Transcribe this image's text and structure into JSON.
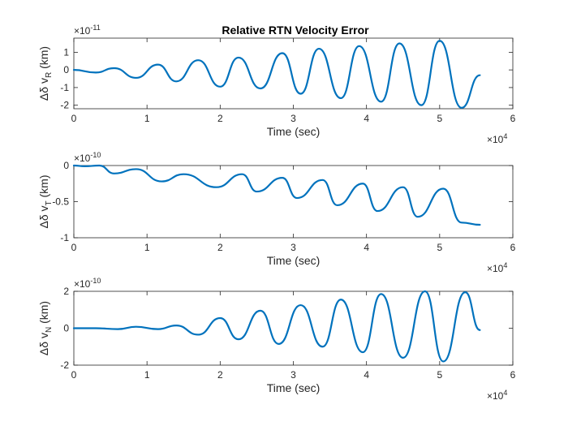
{
  "chart_data": {
    "title": "Relative RTN Velocity Error",
    "colors": {
      "line": "#0072BD",
      "axes": "#262626",
      "background": "#ffffff"
    },
    "panels": [
      {
        "type": "line",
        "ylabel_prefix": "Δδ v",
        "ylabel_sub": "R",
        "ylabel_unit": " (km)",
        "xlabel": "Time (sec)",
        "xlim": [
          0,
          6
        ],
        "x_ticks": [
          "0",
          "1",
          "2",
          "3",
          "4",
          "5",
          "6"
        ],
        "x_exponent_base": "×10",
        "x_exponent_power": "4",
        "ylim": [
          -2.2,
          1.8
        ],
        "y_ticks": [
          -2,
          -1,
          0,
          1
        ],
        "y_tick_labels": [
          "-2",
          "-1",
          "0",
          "1"
        ],
        "y_exponent_base": "×10",
        "y_exponent_power": "-11",
        "series": [
          {
            "x": [
              0,
              0.3,
              0.55,
              0.85,
              1.15,
              1.4,
              1.7,
              2.0,
              2.25,
              2.55,
              2.85,
              3.1,
              3.35,
              3.65,
              3.9,
              4.2,
              4.45,
              4.75,
              5.0,
              5.3,
              5.55
            ],
            "y": [
              0,
              -0.15,
              0.1,
              -0.45,
              0.3,
              -0.65,
              0.55,
              -0.95,
              0.7,
              -1.05,
              0.95,
              -1.35,
              1.2,
              -1.6,
              1.35,
              -1.8,
              1.5,
              -2.0,
              1.65,
              -2.15,
              -0.3
            ]
          }
        ]
      },
      {
        "type": "line",
        "ylabel_prefix": "Δδ v",
        "ylabel_sub": "T",
        "ylabel_unit": " (km)",
        "xlabel": "Time (sec)",
        "xlim": [
          0,
          6
        ],
        "x_ticks": [
          "0",
          "1",
          "2",
          "3",
          "4",
          "5",
          "6"
        ],
        "x_exponent_base": "×10",
        "x_exponent_power": "4",
        "ylim": [
          -1,
          0
        ],
        "y_ticks": [
          -1,
          -0.5,
          0
        ],
        "y_tick_labels": [
          "-1",
          "-0.5",
          "0"
        ],
        "y_exponent_base": "×10",
        "y_exponent_power": "-10",
        "series": [
          {
            "x": [
              0,
              0.15,
              0.35,
              0.55,
              0.85,
              1.2,
              1.5,
              1.95,
              2.3,
              2.5,
              2.85,
              3.05,
              3.4,
              3.6,
              3.95,
              4.15,
              4.5,
              4.7,
              5.05,
              5.3,
              5.55
            ],
            "y": [
              0,
              -0.01,
              0.0,
              -0.11,
              -0.05,
              -0.22,
              -0.12,
              -0.3,
              -0.12,
              -0.36,
              -0.17,
              -0.45,
              -0.2,
              -0.55,
              -0.25,
              -0.63,
              -0.3,
              -0.71,
              -0.32,
              -0.79,
              -0.82
            ]
          }
        ]
      },
      {
        "type": "line",
        "ylabel_prefix": "Δδ v",
        "ylabel_sub": "N",
        "ylabel_unit": " (km)",
        "xlabel": "Time (sec)",
        "xlim": [
          0,
          6
        ],
        "x_ticks": [
          "0",
          "1",
          "2",
          "3",
          "4",
          "5",
          "6"
        ],
        "x_exponent_base": "×10",
        "x_exponent_power": "4",
        "ylim": [
          -2,
          2
        ],
        "y_ticks": [
          -2,
          0,
          2
        ],
        "y_tick_labels": [
          "-2",
          "0",
          "2"
        ],
        "y_exponent_base": "×10",
        "y_exponent_power": "-10",
        "series": [
          {
            "x": [
              0,
              0.3,
              0.6,
              0.85,
              1.15,
              1.4,
              1.7,
              2.0,
              2.25,
              2.55,
              2.8,
              3.1,
              3.4,
              3.65,
              3.95,
              4.2,
              4.5,
              4.8,
              5.05,
              5.35,
              5.55
            ],
            "y": [
              0,
              0.0,
              -0.05,
              0.08,
              -0.05,
              0.15,
              -0.35,
              0.55,
              -0.6,
              0.95,
              -0.85,
              1.25,
              -1.0,
              1.55,
              -1.3,
              1.85,
              -1.6,
              2.0,
              -1.8,
              1.95,
              -0.1
            ]
          }
        ]
      }
    ]
  }
}
